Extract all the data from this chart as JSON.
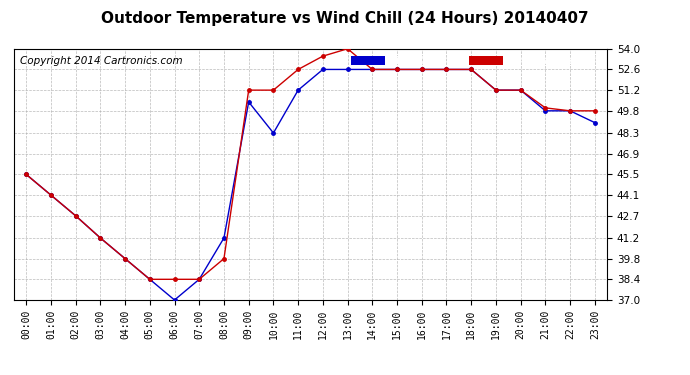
{
  "title": "Outdoor Temperature vs Wind Chill (24 Hours) 20140407",
  "copyright": "Copyright 2014 Cartronics.com",
  "x_labels": [
    "00:00",
    "01:00",
    "02:00",
    "03:00",
    "04:00",
    "05:00",
    "06:00",
    "07:00",
    "08:00",
    "09:00",
    "10:00",
    "11:00",
    "12:00",
    "13:00",
    "14:00",
    "15:00",
    "16:00",
    "17:00",
    "18:00",
    "19:00",
    "20:00",
    "21:00",
    "22:00",
    "23:00"
  ],
  "y_ticks": [
    37.0,
    38.4,
    39.8,
    41.2,
    42.7,
    44.1,
    45.5,
    46.9,
    48.3,
    49.8,
    51.2,
    52.6,
    54.0
  ],
  "ylim": [
    37.0,
    54.0
  ],
  "temperature": [
    45.5,
    44.1,
    42.7,
    41.2,
    39.8,
    38.4,
    38.4,
    38.4,
    39.8,
    51.2,
    51.2,
    52.6,
    53.5,
    54.0,
    52.6,
    52.6,
    52.6,
    52.6,
    52.6,
    51.2,
    51.2,
    50.0,
    49.8,
    49.8
  ],
  "wind_chill": [
    45.5,
    44.1,
    42.7,
    41.2,
    39.8,
    38.4,
    37.0,
    38.4,
    41.2,
    50.4,
    48.3,
    51.2,
    52.6,
    52.6,
    52.6,
    52.6,
    52.6,
    52.6,
    52.6,
    51.2,
    51.2,
    49.8,
    49.8,
    49.0
  ],
  "temp_color": "#cc0000",
  "wind_color": "#0000cc",
  "bg_color": "#ffffff",
  "grid_color": "#aaaaaa",
  "legend_wind_bg": "#0000cc",
  "legend_temp_bg": "#cc0000",
  "title_fontsize": 11,
  "copyright_fontsize": 7.5,
  "tick_fontsize": 7.5,
  "x_tick_fontsize": 7
}
